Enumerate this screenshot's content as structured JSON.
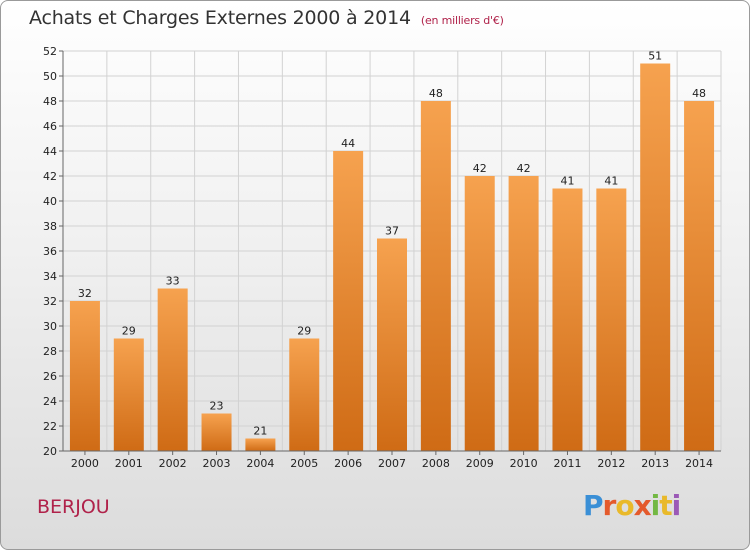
{
  "title": "Achats et Charges Externes 2000 à 2014",
  "unit": "(en milliers d'€)",
  "place": "BERJOU",
  "logo": {
    "p1": "P",
    "p2": "r",
    "p3": "o",
    "p4": "x",
    "p5": "i",
    "p6": "t",
    "p7": "i"
  },
  "colors": {
    "bar": "#f2933f",
    "bar_dark": "#d06d16",
    "accent": "#b0224a"
  },
  "chart_data": {
    "type": "bar",
    "title": "Achats et Charges Externes 2000 à 2014",
    "subtitle": "(en milliers d'€)",
    "xlabel": "",
    "ylabel": "",
    "categories": [
      "2000",
      "2001",
      "2002",
      "2003",
      "2004",
      "2005",
      "2006",
      "2007",
      "2008",
      "2009",
      "2010",
      "2011",
      "2012",
      "2013",
      "2014"
    ],
    "values": [
      32,
      29,
      33,
      23,
      21,
      29,
      44,
      37,
      48,
      42,
      42,
      41,
      41,
      51,
      48
    ],
    "ylim": [
      20,
      52
    ],
    "yticks": [
      20,
      22,
      24,
      26,
      28,
      30,
      32,
      34,
      36,
      38,
      40,
      42,
      44,
      46,
      48,
      50,
      52
    ],
    "grid": true,
    "legend": "none"
  }
}
